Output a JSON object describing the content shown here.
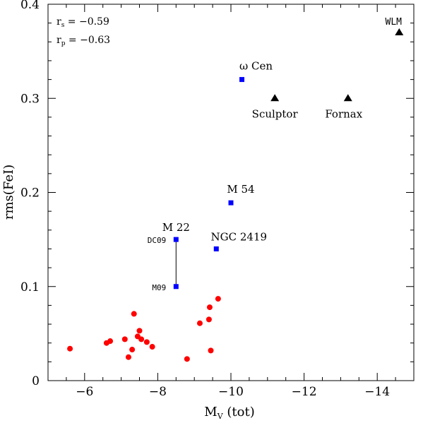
{
  "chart_data": {
    "type": "scatter",
    "xlabel_main": "M",
    "xlabel_sub": "V",
    "xlabel_rest": " (tot)",
    "ylabel": "rms(FeI)",
    "xlim": [
      -5,
      -15
    ],
    "ylim": [
      0,
      0.4
    ],
    "x_ticks": [
      -6,
      -8,
      -10,
      -12,
      -14
    ],
    "x_tick_labels": [
      "−6",
      "−8",
      "−10",
      "−12",
      "−14"
    ],
    "y_ticks": [
      0,
      0.1,
      0.2,
      0.3,
      0.4
    ],
    "y_tick_labels": [
      "0",
      "0.1",
      "0.2",
      "0.3",
      "0.4"
    ],
    "stats": [
      {
        "symbol": "r",
        "sub": "s",
        "text": " = −0.59"
      },
      {
        "symbol": "r",
        "sub": "p",
        "text": " = −0.63"
      }
    ],
    "colors": {
      "red": "#ff0000",
      "blue": "#0000ff",
      "black": "#000000"
    },
    "series": [
      {
        "marker": "circle",
        "color": "#ff0000",
        "points": [
          [
            -5.6,
            0.034
          ],
          [
            -6.6,
            0.04
          ],
          [
            -6.7,
            0.042
          ],
          [
            -7.1,
            0.044
          ],
          [
            -7.2,
            0.025
          ],
          [
            -7.3,
            0.033
          ],
          [
            -7.35,
            0.071
          ],
          [
            -7.45,
            0.047
          ],
          [
            -7.5,
            0.053
          ],
          [
            -7.55,
            0.044
          ],
          [
            -7.7,
            0.041
          ],
          [
            -7.85,
            0.036
          ],
          [
            -8.8,
            0.023
          ],
          [
            -9.15,
            0.061
          ],
          [
            -9.4,
            0.065
          ],
          [
            -9.42,
            0.078
          ],
          [
            -9.45,
            0.032
          ],
          [
            -9.65,
            0.087
          ]
        ]
      },
      {
        "marker": "square",
        "color": "#0000ff",
        "points": [
          {
            "x": -8.5,
            "y": 0.15,
            "label": "DC09"
          },
          {
            "x": -8.5,
            "y": 0.1,
            "label": "M09"
          },
          {
            "x": -9.6,
            "y": 0.14,
            "label": "NGC 2419"
          },
          {
            "x": -10.0,
            "y": 0.189,
            "label": "M 54"
          },
          {
            "x": -10.3,
            "y": 0.32,
            "label": "ω Cen"
          }
        ]
      },
      {
        "marker": "triangle",
        "color": "#000000",
        "points": [
          {
            "x": -11.2,
            "y": 0.3,
            "label": "Sculptor"
          },
          {
            "x": -13.2,
            "y": 0.3,
            "label": "Fornax"
          },
          {
            "x": -14.6,
            "y": 0.37,
            "label": "WLM"
          }
        ]
      }
    ],
    "connector": {
      "x": -8.5,
      "y1": 0.1,
      "y2": 0.15
    },
    "group_label": {
      "text": "M 22",
      "x": -8.5,
      "y": 0.15
    }
  }
}
